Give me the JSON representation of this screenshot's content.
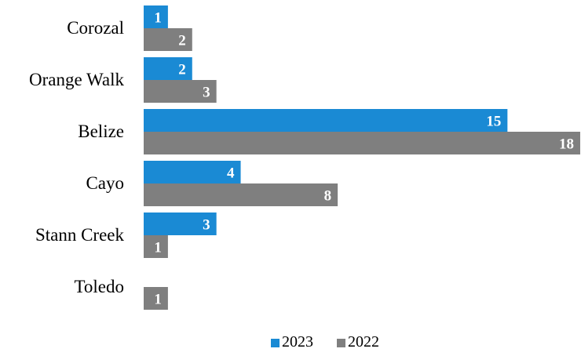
{
  "chart_data": {
    "type": "bar",
    "orientation": "horizontal",
    "categories": [
      "Corozal",
      "Orange Walk",
      "Belize",
      "Cayo",
      "Stann Creek",
      "Toledo"
    ],
    "series": [
      {
        "name": "2023",
        "values": [
          1,
          2,
          15,
          4,
          3,
          null
        ],
        "color": "#1a8ad4"
      },
      {
        "name": "2022",
        "values": [
          2,
          3,
          18,
          8,
          1,
          1
        ],
        "color": "#7f7f7f"
      }
    ],
    "data_labels": true,
    "legend": "bottom",
    "grid": false,
    "xlim": [
      0,
      18
    ]
  }
}
